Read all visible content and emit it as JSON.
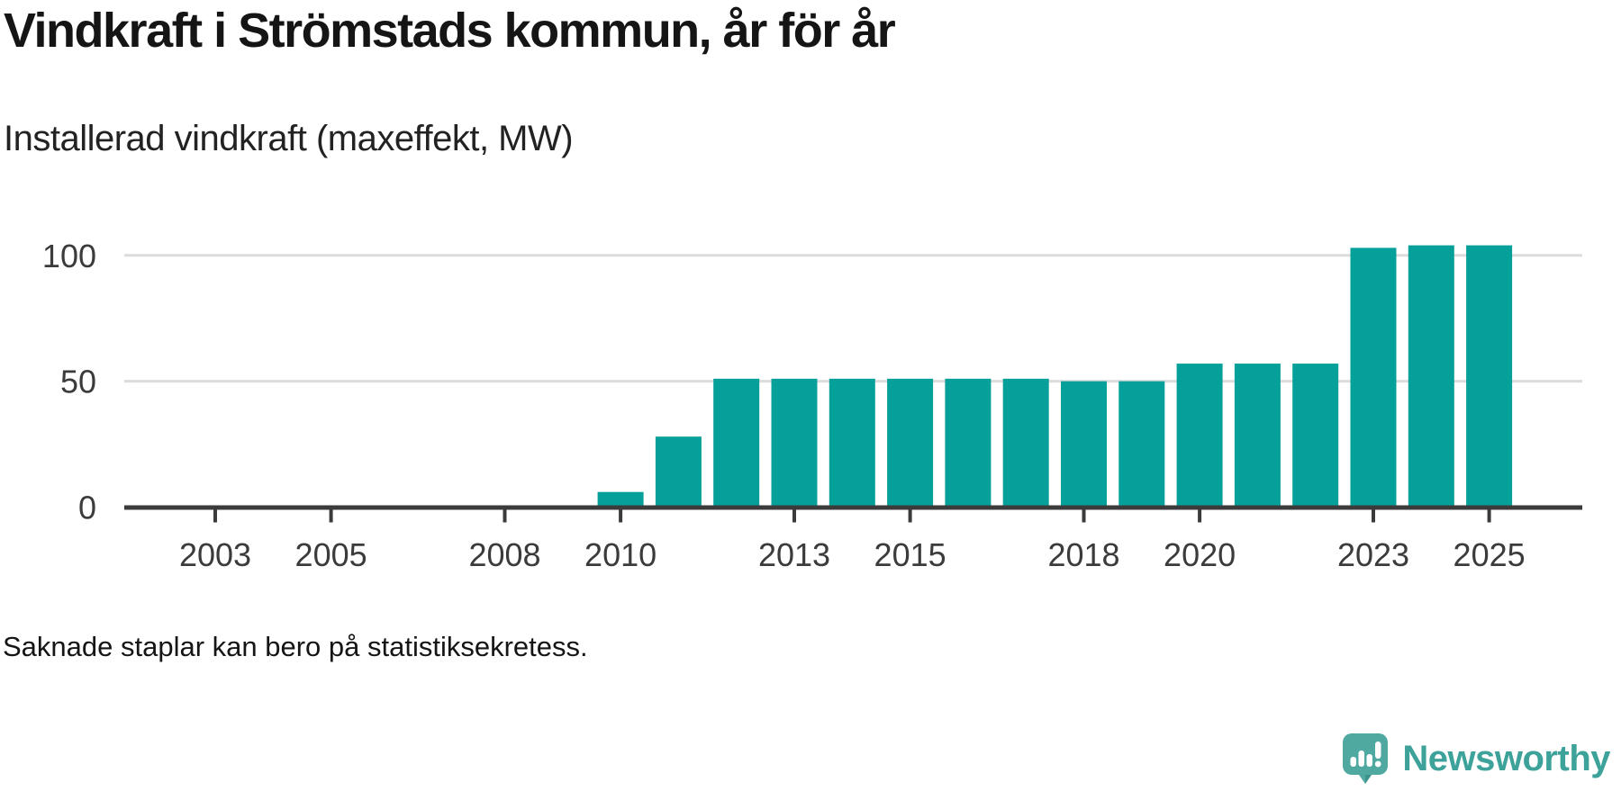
{
  "header": {
    "title": "Vindkraft i Strömstads kommun, år för år",
    "subtitle": "Installerad vindkraft (maxeffekt, MW)"
  },
  "footer": {
    "note": "Saknade staplar kan bero på statistiksekretess.",
    "brand": "Newsworthy"
  },
  "colors": {
    "bar": "#05a09a",
    "axis": "#3b3b3b",
    "grid": "#dcdcdc",
    "tick_label": "#3b3b3b",
    "logo_bubble": "#4fa9a1",
    "logo_bubble_shade": "#3e938c",
    "logo_text": "#3da29a"
  },
  "chart_data": {
    "type": "bar",
    "title": "Vindkraft i Strömstads kommun, år för år",
    "subtitle": "Installerad vindkraft (maxeffekt, MW)",
    "xlabel": "",
    "ylabel": "Installerad vindkraft (maxeffekt, MW)",
    "note": "Saknade staplar kan bero på statistiksekretess.",
    "legend": "none",
    "grid": "horizontal",
    "ylim": [
      0,
      110
    ],
    "xlim": [
      2001.4,
      2026.6
    ],
    "yticks": [
      0,
      50,
      100
    ],
    "xticks": [
      2003,
      2005,
      2008,
      2010,
      2013,
      2015,
      2018,
      2020,
      2023,
      2025
    ],
    "series": [
      {
        "year": 2002,
        "value": null
      },
      {
        "year": 2003,
        "value": null
      },
      {
        "year": 2004,
        "value": null
      },
      {
        "year": 2005,
        "value": null
      },
      {
        "year": 2006,
        "value": null
      },
      {
        "year": 2007,
        "value": null
      },
      {
        "year": 2008,
        "value": null
      },
      {
        "year": 2009,
        "value": null
      },
      {
        "year": 2010,
        "value": 6
      },
      {
        "year": 2011,
        "value": 28
      },
      {
        "year": 2012,
        "value": 51
      },
      {
        "year": 2013,
        "value": 51
      },
      {
        "year": 2014,
        "value": 51
      },
      {
        "year": 2015,
        "value": 51
      },
      {
        "year": 2016,
        "value": 51
      },
      {
        "year": 2017,
        "value": 51
      },
      {
        "year": 2018,
        "value": 50
      },
      {
        "year": 2019,
        "value": 50
      },
      {
        "year": 2020,
        "value": 57
      },
      {
        "year": 2021,
        "value": 57
      },
      {
        "year": 2022,
        "value": 57
      },
      {
        "year": 2023,
        "value": 103
      },
      {
        "year": 2024,
        "value": 104
      },
      {
        "year": 2025,
        "value": 104
      }
    ]
  }
}
